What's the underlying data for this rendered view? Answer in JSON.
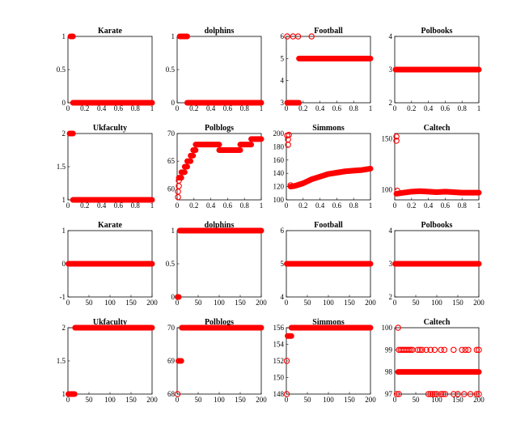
{
  "chart_data": [
    {
      "type": "scatter",
      "title": "Karate",
      "xlim": [
        0,
        1
      ],
      "ylim": [
        0,
        1
      ],
      "xticks": [
        "0",
        "0.2",
        "0.4",
        "0.6",
        "0.8",
        "1"
      ],
      "yticks": [
        "0",
        "0.5",
        "1"
      ],
      "runs": [
        {
          "x": [
            0.03,
            0.06
          ],
          "y": 1
        },
        {
          "x": [
            0.06,
            1.0
          ],
          "y": 0
        }
      ],
      "marker": "circle-open",
      "color": "#ff0000"
    },
    {
      "type": "scatter",
      "title": "dolphins",
      "xlim": [
        0,
        1
      ],
      "ylim": [
        0,
        1
      ],
      "xticks": [
        "0",
        "0.2",
        "0.4",
        "0.6",
        "0.8",
        "1"
      ],
      "yticks": [
        "0",
        "0.5",
        "1"
      ],
      "runs": [
        {
          "x": [
            0.03,
            0.12
          ],
          "y": 1
        },
        {
          "x": [
            0.12,
            1.0
          ],
          "y": 0
        }
      ],
      "marker": "circle-open",
      "color": "#ff0000"
    },
    {
      "type": "scatter",
      "title": "Football",
      "xlim": [
        0,
        1
      ],
      "ylim": [
        3,
        6
      ],
      "xticks": [
        "0",
        "0.2",
        "0.4",
        "0.6",
        "0.8",
        "1"
      ],
      "yticks": [
        "3",
        "4",
        "5",
        "6"
      ],
      "points": [
        {
          "x": 0.01,
          "y": 6
        },
        {
          "x": 0.08,
          "y": 6
        },
        {
          "x": 0.14,
          "y": 6
        },
        {
          "x": 0.3,
          "y": 6
        }
      ],
      "runs": [
        {
          "x": [
            0.01,
            0.15
          ],
          "y": 3
        },
        {
          "x": [
            0.15,
            1.0
          ],
          "y": 5
        }
      ],
      "marker": "circle-open",
      "color": "#ff0000"
    },
    {
      "type": "scatter",
      "title": "Polbooks",
      "xlim": [
        0,
        1
      ],
      "ylim": [
        2,
        4
      ],
      "xticks": [
        "0",
        "0.2",
        "0.4",
        "0.6",
        "0.8",
        "1"
      ],
      "yticks": [
        "2",
        "3",
        "4"
      ],
      "runs": [
        {
          "x": [
            0.01,
            1.0
          ],
          "y": 3
        }
      ],
      "marker": "circle-open",
      "color": "#ff0000"
    },
    {
      "type": "scatter",
      "title": "Ukfaculty",
      "xlim": [
        0,
        1
      ],
      "ylim": [
        1,
        2
      ],
      "xticks": [
        "0",
        "0.2",
        "0.4",
        "0.6",
        "0.8",
        "1"
      ],
      "yticks": [
        "1",
        "1.5",
        "2"
      ],
      "runs": [
        {
          "x": [
            0.02,
            0.06
          ],
          "y": 2
        },
        {
          "x": [
            0.06,
            1.0
          ],
          "y": 1
        }
      ],
      "marker": "circle-open",
      "color": "#ff0000"
    },
    {
      "type": "scatter",
      "title": "Polblogs",
      "xlim": [
        0,
        1
      ],
      "ylim": [
        58,
        70
      ],
      "xticks": [
        "0",
        "0.2",
        "0.4",
        "0.6",
        "0.8",
        "1"
      ],
      "yticks": [
        "60",
        "65",
        "70"
      ],
      "points": [
        {
          "x": 0.01,
          "y": 58.5
        },
        {
          "x": 0.01,
          "y": 59.5
        },
        {
          "x": 0.02,
          "y": 60.5
        },
        {
          "x": 0.02,
          "y": 61.5
        }
      ],
      "runs": [
        {
          "x": [
            0.02,
            0.05
          ],
          "y": 62
        },
        {
          "x": [
            0.05,
            0.09
          ],
          "y": 63
        },
        {
          "x": [
            0.09,
            0.12
          ],
          "y": 64
        },
        {
          "x": [
            0.12,
            0.16
          ],
          "y": 65
        },
        {
          "x": [
            0.16,
            0.19
          ],
          "y": 66
        },
        {
          "x": [
            0.19,
            0.22
          ],
          "y": 67
        },
        {
          "x": [
            0.22,
            0.5
          ],
          "y": 68
        },
        {
          "x": [
            0.5,
            0.75
          ],
          "y": 67
        },
        {
          "x": [
            0.75,
            0.88
          ],
          "y": 68
        },
        {
          "x": [
            0.88,
            1.0
          ],
          "y": 69
        }
      ],
      "marker": "circle-open",
      "color": "#ff0000"
    },
    {
      "type": "scatter",
      "title": "Simmons",
      "xlim": [
        0,
        1
      ],
      "ylim": [
        100,
        200
      ],
      "xticks": [
        "0",
        "0.2",
        "0.4",
        "0.6",
        "0.8",
        "1"
      ],
      "yticks": [
        "100",
        "120",
        "140",
        "160",
        "180",
        "200"
      ],
      "points": [
        {
          "x": 0.01,
          "y": 197
        },
        {
          "x": 0.02,
          "y": 191
        },
        {
          "x": 0.02,
          "y": 183
        },
        {
          "x": 0.03,
          "y": 198
        },
        {
          "x": 0.05,
          "y": 122
        }
      ],
      "curve": {
        "x": [
          0.05,
          0.1,
          0.2,
          0.3,
          0.4,
          0.5,
          0.6,
          0.7,
          0.8,
          0.9,
          1.0
        ],
        "y": [
          120,
          121,
          125,
          131,
          135,
          139,
          141,
          143,
          144,
          145,
          147
        ]
      },
      "marker": "circle-open",
      "color": "#ff0000"
    },
    {
      "type": "scatter",
      "title": "Caltech",
      "xlim": [
        0,
        1
      ],
      "ylim": [
        90,
        155
      ],
      "xticks": [
        "0",
        "0.2",
        "0.4",
        "0.6",
        "0.8",
        "1"
      ],
      "yticks": [
        "100",
        "150"
      ],
      "points": [
        {
          "x": 0.02,
          "y": 152
        },
        {
          "x": 0.02,
          "y": 148
        },
        {
          "x": 0.03,
          "y": 99
        }
      ],
      "curve": {
        "x": [
          0.02,
          0.1,
          0.2,
          0.3,
          0.4,
          0.5,
          0.6,
          0.7,
          0.8,
          0.9,
          1.0
        ],
        "y": [
          96,
          97,
          98,
          98.5,
          98,
          97.5,
          98,
          97.5,
          97,
          97,
          97
        ]
      },
      "marker": "circle-open",
      "color": "#ff0000"
    },
    {
      "type": "scatter",
      "title": "Karate",
      "xlim": [
        0,
        200
      ],
      "ylim": [
        -1,
        1
      ],
      "xticks": [
        "0",
        "50",
        "100",
        "150",
        "200"
      ],
      "yticks": [
        "-1",
        "0",
        "1"
      ],
      "runs": [
        {
          "x": [
            1,
            200
          ],
          "y": 0
        }
      ],
      "marker": "circle-open",
      "color": "#ff0000"
    },
    {
      "type": "scatter",
      "title": "dolphins",
      "xlim": [
        0,
        200
      ],
      "ylim": [
        0,
        1
      ],
      "xticks": [
        "0",
        "50",
        "100",
        "150",
        "200"
      ],
      "yticks": [
        "0",
        "0.5",
        "1"
      ],
      "runs": [
        {
          "x": [
            1,
            4
          ],
          "y": 0
        },
        {
          "x": [
            6,
            200
          ],
          "y": 1
        }
      ],
      "marker": "circle-open",
      "color": "#ff0000"
    },
    {
      "type": "scatter",
      "title": "Football",
      "xlim": [
        0,
        200
      ],
      "ylim": [
        4,
        6
      ],
      "xticks": [
        "0",
        "50",
        "100",
        "150",
        "200"
      ],
      "yticks": [
        "4",
        "5",
        "6"
      ],
      "runs": [
        {
          "x": [
            1,
            200
          ],
          "y": 5
        }
      ],
      "marker": "circle-open",
      "color": "#ff0000"
    },
    {
      "type": "scatter",
      "title": "Polbooks",
      "xlim": [
        0,
        200
      ],
      "ylim": [
        2,
        4
      ],
      "xticks": [
        "0",
        "50",
        "100",
        "150",
        "200"
      ],
      "yticks": [
        "2",
        "3",
        "4"
      ],
      "runs": [
        {
          "x": [
            1,
            200
          ],
          "y": 3
        }
      ],
      "marker": "circle-open",
      "color": "#ff0000"
    },
    {
      "type": "scatter",
      "title": "Ukfaculty",
      "xlim": [
        0,
        200
      ],
      "ylim": [
        1,
        2
      ],
      "xticks": [
        "0",
        "50",
        "100",
        "150",
        "200"
      ],
      "yticks": [
        "1",
        "1.5",
        "2"
      ],
      "runs": [
        {
          "x": [
            1,
            16
          ],
          "y": 1
        },
        {
          "x": [
            17,
            200
          ],
          "y": 2
        }
      ],
      "marker": "circle-open",
      "color": "#ff0000"
    },
    {
      "type": "scatter",
      "title": "Polblogs",
      "xlim": [
        0,
        200
      ],
      "ylim": [
        68,
        70
      ],
      "xticks": [
        "0",
        "50",
        "100",
        "150",
        "200"
      ],
      "yticks": [
        "68",
        "69",
        "70"
      ],
      "points": [
        {
          "x": 1,
          "y": 68
        }
      ],
      "runs": [
        {
          "x": [
            3,
            10
          ],
          "y": 69
        },
        {
          "x": [
            11,
            200
          ],
          "y": 70
        }
      ],
      "marker": "circle-open",
      "color": "#ff0000"
    },
    {
      "type": "scatter",
      "title": "Simmons",
      "xlim": [
        0,
        200
      ],
      "ylim": [
        148,
        156
      ],
      "xticks": [
        "0",
        "50",
        "100",
        "150",
        "200"
      ],
      "yticks": [
        "148",
        "150",
        "152",
        "154",
        "156"
      ],
      "points": [
        {
          "x": 1,
          "y": 148
        },
        {
          "x": 1,
          "y": 152
        }
      ],
      "runs": [
        {
          "x": [
            3,
            12
          ],
          "y": 155
        },
        {
          "x": [
            12,
            200
          ],
          "y": 156
        }
      ],
      "marker": "circle-open",
      "color": "#ff0000"
    },
    {
      "type": "scatter",
      "title": "Caltech",
      "xlim": [
        0,
        200
      ],
      "ylim": [
        97,
        100
      ],
      "xticks": [
        "0",
        "50",
        "100",
        "150",
        "200"
      ],
      "yticks": [
        "97",
        "98",
        "99",
        "100"
      ],
      "points": [
        {
          "x": 8,
          "y": 100
        }
      ],
      "runs": [
        {
          "x": [
            8,
            200
          ],
          "y": 98
        }
      ],
      "sparse": [
        {
          "y": 99,
          "x": [
            10,
            14,
            18,
            22,
            26,
            30,
            34,
            38,
            42,
            55,
            60,
            65,
            75,
            85,
            95,
            110,
            118,
            140,
            160,
            168,
            175,
            195,
            200
          ]
        },
        {
          "y": 97,
          "x": [
            5,
            10,
            80,
            85,
            90,
            95,
            100,
            110,
            115,
            120,
            140,
            150,
            165,
            180,
            195,
            200
          ]
        }
      ],
      "marker": "circle-open",
      "color": "#ff0000"
    }
  ]
}
